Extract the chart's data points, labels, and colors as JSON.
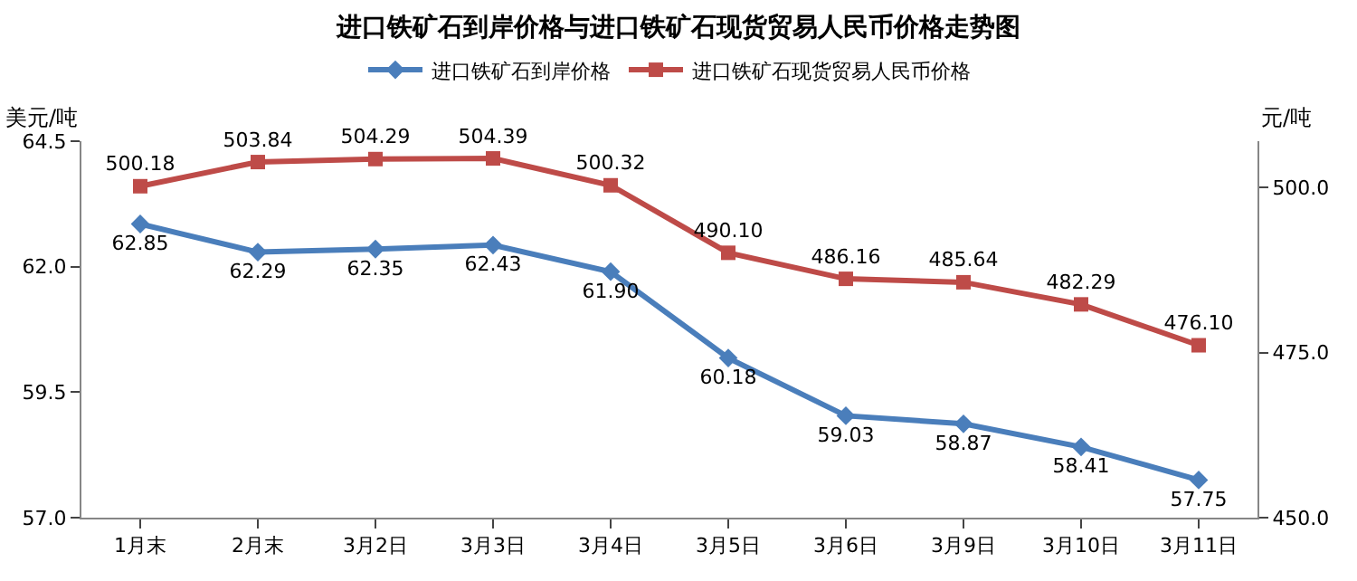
{
  "chart_data": {
    "type": "line",
    "title": "进口铁矿石到岸价格与进口铁矿石现货贸易人民币价格走势图",
    "ylabel": "美元/吨",
    "y2label": "元/吨",
    "categories": [
      "1月末",
      "2月末",
      "3月2日",
      "3月3日",
      "3月4日",
      "3月5日",
      "3月6日",
      "3月9日",
      "3月10日",
      "3月11日"
    ],
    "series": [
      {
        "name": "进口铁矿石到岸价格",
        "color": "#4a7ebb",
        "marker": "diamond",
        "values": [
          62.85,
          62.29,
          62.35,
          62.43,
          61.9,
          60.18,
          59.03,
          58.87,
          58.41,
          57.75
        ],
        "value_labels": [
          "62.85",
          "62.29",
          "62.35",
          "62.43",
          "61.90",
          "60.18",
          "59.03",
          "58.87",
          "58.41",
          "57.75"
        ]
      },
      {
        "name": "进口铁矿石现货贸易人民币价格",
        "color": "#be4b48",
        "marker": "square",
        "axis": "y2",
        "values": [
          500.18,
          503.84,
          504.29,
          504.39,
          500.32,
          490.1,
          486.16,
          485.64,
          482.29,
          476.1
        ],
        "value_labels": [
          "500.18",
          "503.84",
          "504.29",
          "504.39",
          "500.32",
          "490.10",
          "486.16",
          "485.64",
          "482.29",
          "476.10"
        ]
      }
    ],
    "ylim": [
      57.0,
      64.5
    ],
    "yticks": [
      {
        "value": 57,
        "label": "57.0"
      },
      {
        "value": 59.5,
        "label": "59.5"
      },
      {
        "value": 62,
        "label": "62.0"
      },
      {
        "value": 64.5,
        "label": "64.5"
      }
    ],
    "y2lim": [
      450,
      507
    ],
    "y2ticks": [
      {
        "value": 450,
        "label": "450.0"
      },
      {
        "value": 475,
        "label": "475.0"
      },
      {
        "value": 500,
        "label": "500.0"
      }
    ],
    "legend": "top",
    "line_style": "solid"
  }
}
